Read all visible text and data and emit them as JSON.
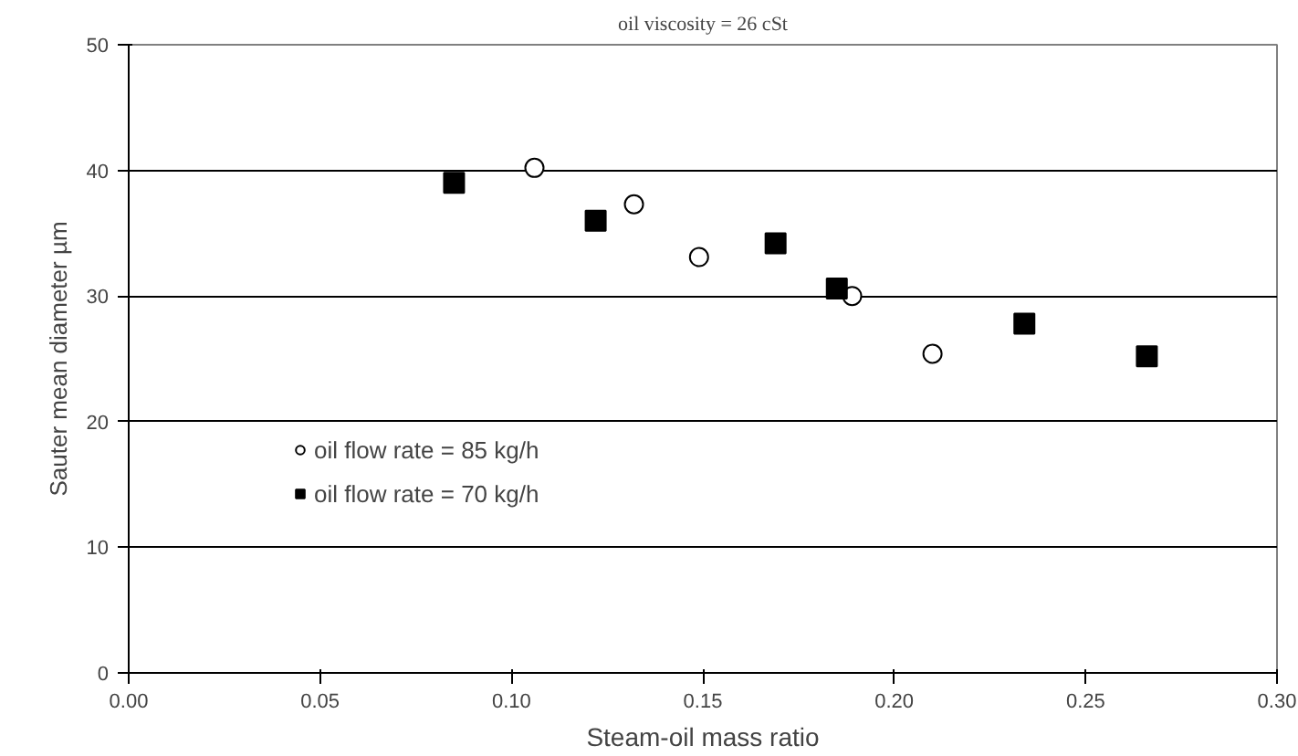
{
  "chart_data": {
    "type": "scatter",
    "title": "oil viscosity = 26 cSt",
    "xlabel": "Steam-oil mass ratio",
    "ylabel": "Sauter mean diameter µm",
    "series": [
      {
        "name": "oil flow rate = 85 kg/h",
        "color": "#ffffff",
        "marker": "circle",
        "x": [
          0.106,
          0.132,
          0.149,
          0.189,
          0.21
        ],
        "values": [
          40.2,
          37.3,
          33.1,
          30.0,
          25.4
        ]
      },
      {
        "name": "oil flow rate = 70 kg/h",
        "color": "#000000",
        "marker": "square",
        "x": [
          0.085,
          0.122,
          0.169,
          0.185,
          0.234,
          0.266
        ],
        "values": [
          39.0,
          36.0,
          34.2,
          30.6,
          27.8,
          25.2
        ]
      }
    ],
    "xlim": [
      0,
      0.3
    ],
    "xticks": [
      {
        "value": 0,
        "label": "0.00"
      },
      {
        "value": 0.05,
        "label": "0.05"
      },
      {
        "value": 0.1,
        "label": "0.10"
      },
      {
        "value": 0.15,
        "label": "0.15"
      },
      {
        "value": 0.2,
        "label": "0.20"
      },
      {
        "value": 0.25,
        "label": "0.25"
      },
      {
        "value": 0.3,
        "label": "0.30"
      }
    ],
    "ylim": [
      0,
      50
    ],
    "yticks": [
      0,
      10,
      20,
      30,
      40,
      50
    ],
    "grid": "y",
    "legend": "bottom left"
  }
}
